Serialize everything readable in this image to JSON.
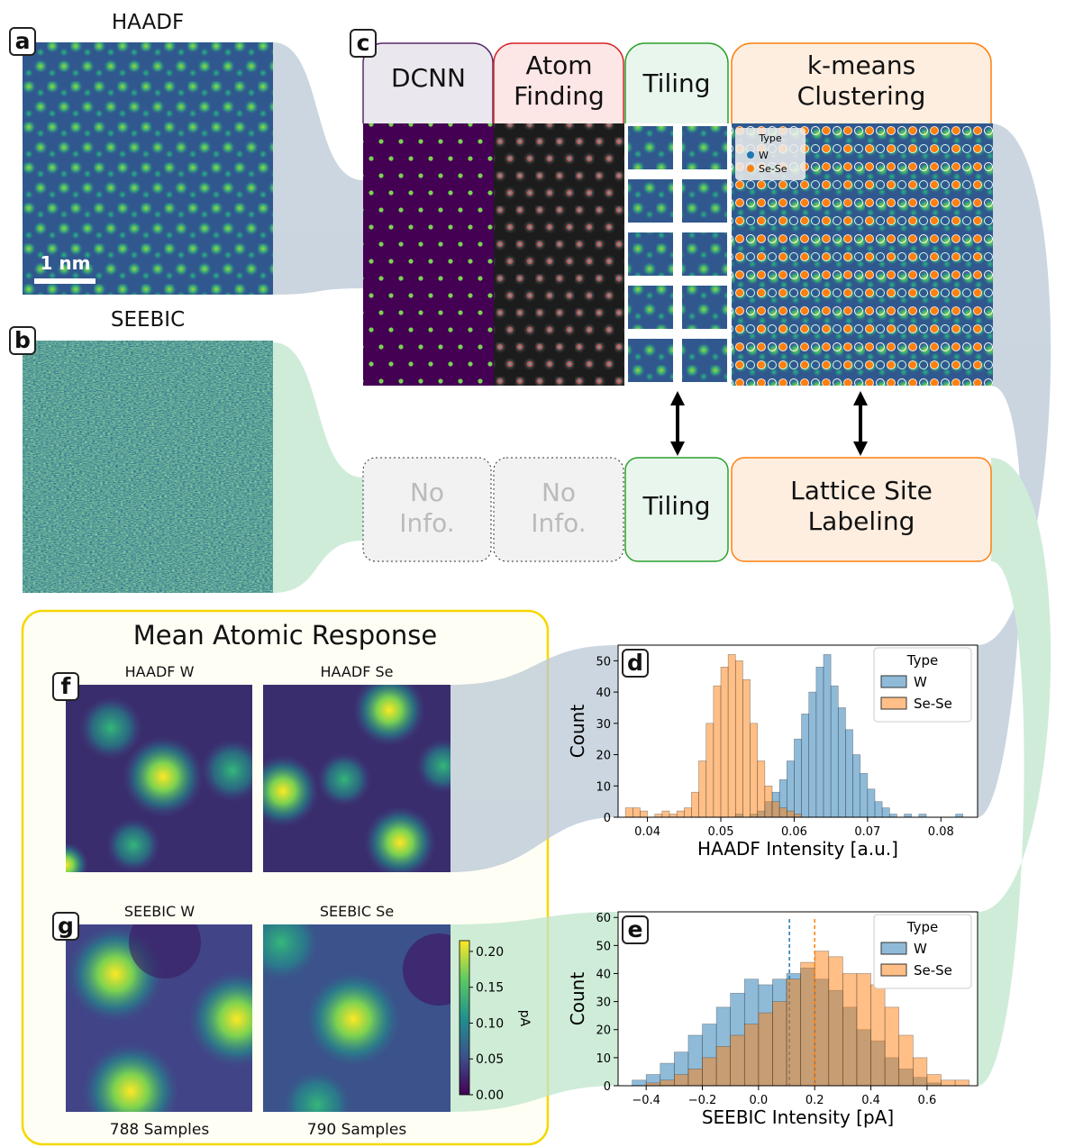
{
  "panel_labels": {
    "a": "a",
    "b": "b",
    "c": "c",
    "d": "d",
    "e": "e",
    "f": "f",
    "g": "g"
  },
  "haadf": {
    "title": "HAADF",
    "scale_bar": "1 nm"
  },
  "seebic": {
    "title": "SEEBIC"
  },
  "pipeline": {
    "haadf_steps": [
      "DCNN",
      "Atom Finding",
      "Tiling",
      "k-means Clustering"
    ],
    "seebic_steps": [
      "No Info.",
      "No Info.",
      "Tiling",
      "Lattice Site Labeling"
    ],
    "cluster_legend": {
      "title": "Type",
      "entries": [
        "W",
        "Se-Se"
      ],
      "colors": [
        "#1f77b4",
        "#ff7f0e"
      ]
    }
  },
  "mean_response": {
    "title": "Mean Atomic Response",
    "image_titles": [
      "HAADF W",
      "HAADF Se",
      "SEEBIC W",
      "SEEBIC Se"
    ],
    "samples": [
      "788 Samples",
      "790 Samples"
    ],
    "colorbar": {
      "label": "pA",
      "lim": [
        0,
        0.215
      ],
      "ticks": [
        {
          "value": 0,
          "label": "0.00"
        },
        0.05,
        {
          "value": 0.1,
          "label": "0.10"
        },
        0.15,
        {
          "value": 0.2,
          "label": "0.20"
        }
      ]
    }
  },
  "chart_data": [
    {
      "type": "histogram",
      "panel": "d",
      "xlabel": "HAADF Intensity [a.u.]",
      "ylabel": "Count",
      "bins": [
        0.036,
        0.037,
        0.038,
        0.039,
        0.04,
        0.041,
        0.042,
        0.043,
        0.044,
        0.045,
        0.046,
        0.047,
        0.048,
        0.049,
        0.05,
        0.051,
        0.052,
        0.053,
        0.054,
        0.055,
        0.056,
        0.057,
        0.058,
        0.059,
        0.06,
        0.061,
        0.062,
        0.063,
        0.064,
        0.065,
        0.066,
        0.067,
        0.068,
        0.069,
        0.07,
        0.071,
        0.072,
        0.073,
        0.074,
        0.075,
        0.076,
        0.077,
        0.078,
        0.079,
        0.08,
        0.081,
        0.082,
        0.083,
        0.084
      ],
      "series": [
        {
          "name": "W",
          "color": "#1f77b4",
          "values": [
            0,
            0,
            0,
            0,
            0,
            0,
            0,
            0,
            0,
            0,
            0,
            0,
            0,
            0,
            0,
            0,
            1,
            0,
            1,
            2,
            5,
            8,
            12,
            18,
            25,
            33,
            40,
            48,
            52,
            42,
            35,
            28,
            20,
            14,
            9,
            5,
            3,
            1,
            0,
            1,
            0,
            1,
            0,
            0,
            0,
            0,
            1,
            0
          ]
        },
        {
          "name": "Se-Se",
          "color": "#ff7f0e",
          "values": [
            0,
            3,
            3,
            2,
            0,
            1,
            2,
            1,
            2,
            3,
            8,
            18,
            30,
            42,
            48,
            52,
            50,
            44,
            30,
            18,
            10,
            5,
            3,
            2,
            1,
            0,
            0,
            0,
            0,
            0,
            0,
            0,
            0,
            0,
            0,
            0,
            0,
            0,
            0,
            0,
            0,
            0,
            0,
            0,
            0,
            0,
            0,
            0
          ]
        }
      ],
      "xlim": [
        0.036,
        0.085
      ],
      "ylim": [
        0,
        55
      ],
      "xticks": [
        0.04,
        0.05,
        0.06,
        0.07,
        0.08
      ],
      "yticks": [
        0,
        10,
        20,
        30,
        40,
        50
      ],
      "legend": {
        "title": "Type",
        "position": "upper right"
      }
    },
    {
      "type": "histogram",
      "panel": "e",
      "xlabel": "SEEBIC Intensity [pA]",
      "ylabel": "Count",
      "bins": [
        -0.5,
        -0.45,
        -0.4,
        -0.35,
        -0.3,
        -0.25,
        -0.2,
        -0.15,
        -0.1,
        -0.05,
        0,
        0.05,
        0.1,
        0.15,
        0.2,
        0.25,
        0.3,
        0.35,
        0.4,
        0.45,
        0.5,
        0.55,
        0.6,
        0.65,
        0.7,
        0.75
      ],
      "series": [
        {
          "name": "W",
          "color": "#1f77b4",
          "mean": 0.11,
          "values": [
            0,
            2,
            4,
            8,
            12,
            18,
            22,
            28,
            33,
            38,
            36,
            38,
            40,
            42,
            38,
            34,
            28,
            20,
            16,
            10,
            6,
            3,
            1,
            0,
            0
          ]
        },
        {
          "name": "Se-Se",
          "color": "#ff7f0e",
          "mean": 0.2,
          "values": [
            0,
            0,
            1,
            2,
            4,
            6,
            10,
            14,
            18,
            22,
            26,
            30,
            38,
            44,
            48,
            46,
            40,
            40,
            36,
            28,
            18,
            10,
            4,
            2,
            2
          ]
        }
      ],
      "xlim": [
        -0.5,
        0.78
      ],
      "ylim": [
        0,
        62
      ],
      "xticks": [
        {
          "value": -0.4,
          "label": "−0.4"
        },
        {
          "value": -0.2,
          "label": "−0.2"
        },
        {
          "value": 0,
          "label": "0.0"
        },
        0.2,
        0.4,
        0.6
      ],
      "yticks": [
        0,
        10,
        20,
        30,
        40,
        50,
        60
      ],
      "legend": {
        "title": "Type",
        "position": "upper right"
      }
    }
  ]
}
